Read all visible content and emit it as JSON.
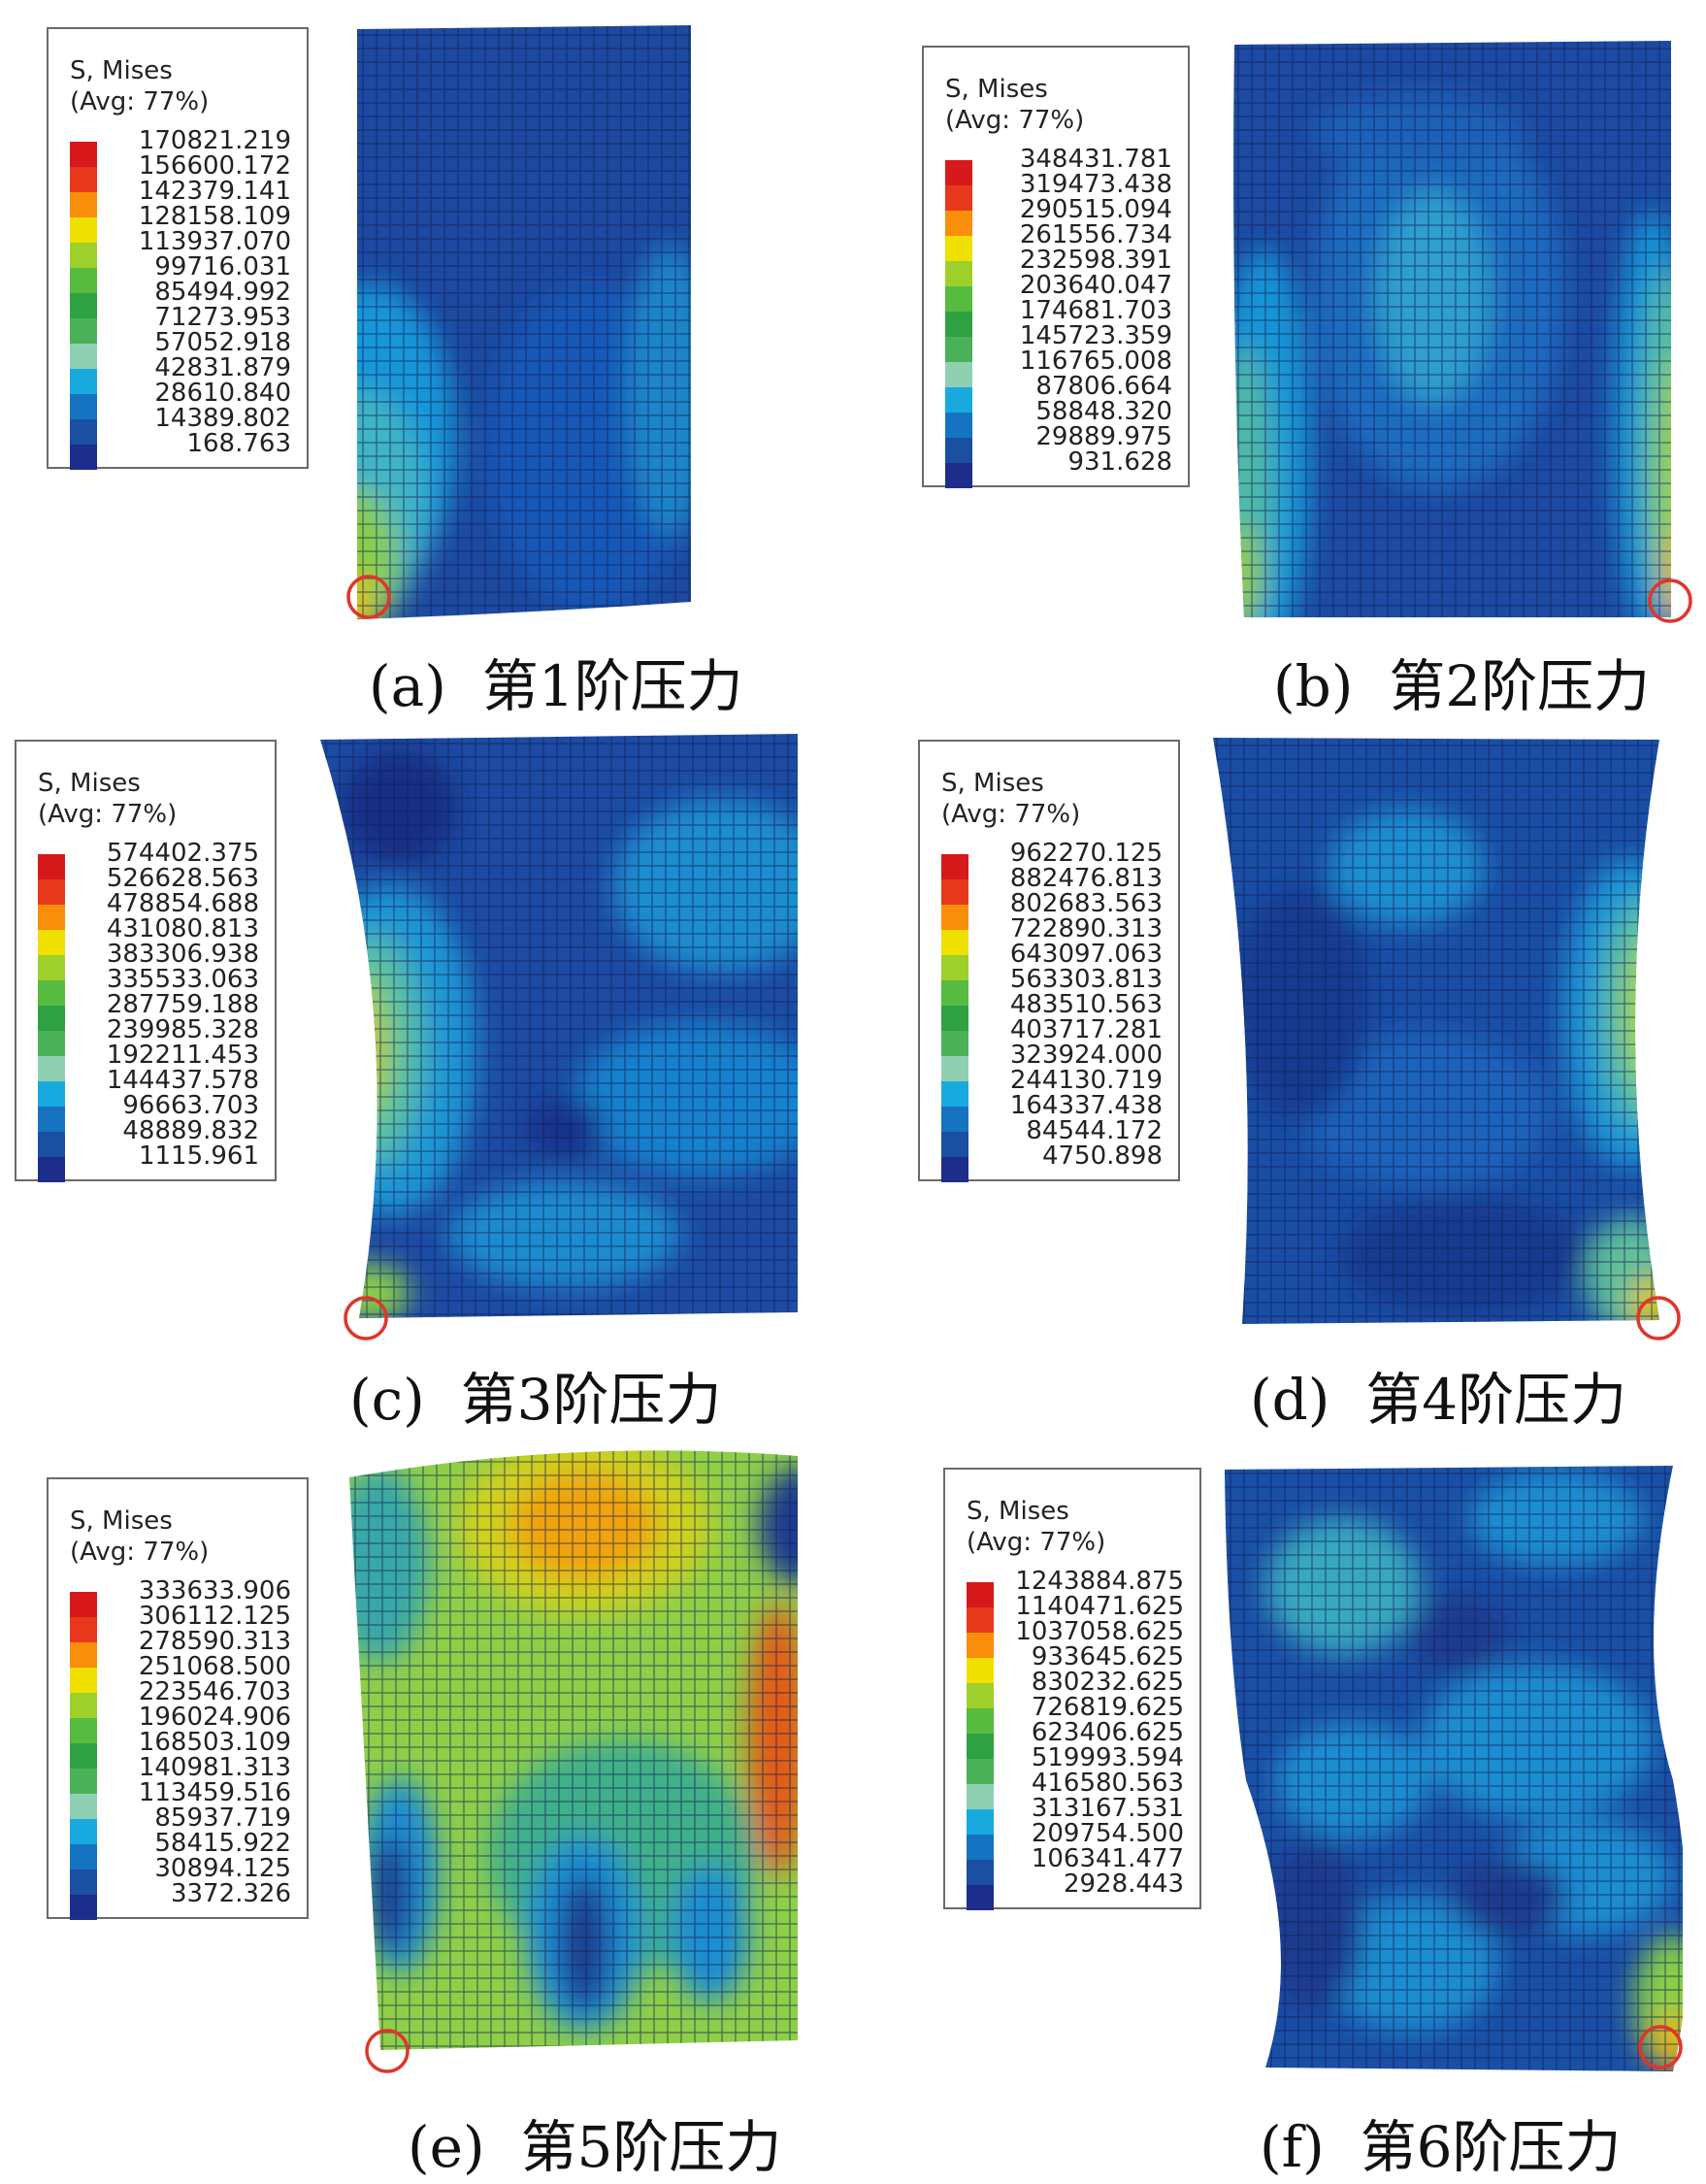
{
  "legend_colors": [
    "#d7191c",
    "#e8381c",
    "#f98e0a",
    "#f0e000",
    "#9dd02a",
    "#56bb3e",
    "#2ea243",
    "#4ab159",
    "#8fd0b3",
    "#18aadf",
    "#1673c2",
    "#1a4fa2",
    "#1c2d8c"
  ],
  "panels": [
    {
      "legend": {
        "title": "S, Mises",
        "subtitle": "(Avg: 77%)",
        "values": [
          "170821.219",
          "156600.172",
          "142379.141",
          "128158.109",
          "113937.070",
          "99716.031",
          "85494.992",
          "71273.953",
          "57052.918",
          "42831.879",
          "28610.840",
          "14389.802",
          "168.763"
        ]
      },
      "caption": {
        "label": "(a)",
        "text": "第1阶压力"
      }
    },
    {
      "legend": {
        "title": "S, Mises",
        "subtitle": "(Avg: 77%)",
        "values": [
          "348431.781",
          "319473.438",
          "290515.094",
          "261556.734",
          "232598.391",
          "203640.047",
          "174681.703",
          "145723.359",
          "116765.008",
          "87806.664",
          "58848.320",
          "29889.975",
          "931.628"
        ]
      },
      "caption": {
        "label": "(b)",
        "text": "第2阶压力"
      }
    },
    {
      "legend": {
        "title": "S, Mises",
        "subtitle": "(Avg: 77%)",
        "values": [
          "574402.375",
          "526628.563",
          "478854.688",
          "431080.813",
          "383306.938",
          "335533.063",
          "287759.188",
          "239985.328",
          "192211.453",
          "144437.578",
          "96663.703",
          "48889.832",
          "1115.961"
        ]
      },
      "caption": {
        "label": "(c)",
        "text": "第3阶压力"
      }
    },
    {
      "legend": {
        "title": "S, Mises",
        "subtitle": "(Avg: 77%)",
        "values": [
          "962270.125",
          "882476.813",
          "802683.563",
          "722890.313",
          "643097.063",
          "563303.813",
          "483510.563",
          "403717.281",
          "323924.000",
          "244130.719",
          "164337.438",
          "84544.172",
          "4750.898"
        ]
      },
      "caption": {
        "label": "(d)",
        "text": "第4阶压力"
      }
    },
    {
      "legend": {
        "title": "S, Mises",
        "subtitle": "(Avg: 77%)",
        "values": [
          "333633.906",
          "306112.125",
          "278590.313",
          "251068.500",
          "223546.703",
          "196024.906",
          "168503.109",
          "140981.313",
          "113459.516",
          "85937.719",
          "58415.922",
          "30894.125",
          "3372.326"
        ]
      },
      "caption": {
        "label": "(e)",
        "text": "第5阶压力"
      }
    },
    {
      "legend": {
        "title": "S, Mises",
        "subtitle": "(Avg: 77%)",
        "values": [
          "1243884.875",
          "1140471.625",
          "1037058.625",
          "933645.625",
          "830232.625",
          "726819.625",
          "623406.625",
          "519993.594",
          "416580.563",
          "313167.531",
          "209754.500",
          "106341.477",
          "2928.443"
        ]
      },
      "caption": {
        "label": "(f)",
        "text": "第6阶压力"
      }
    }
  ]
}
